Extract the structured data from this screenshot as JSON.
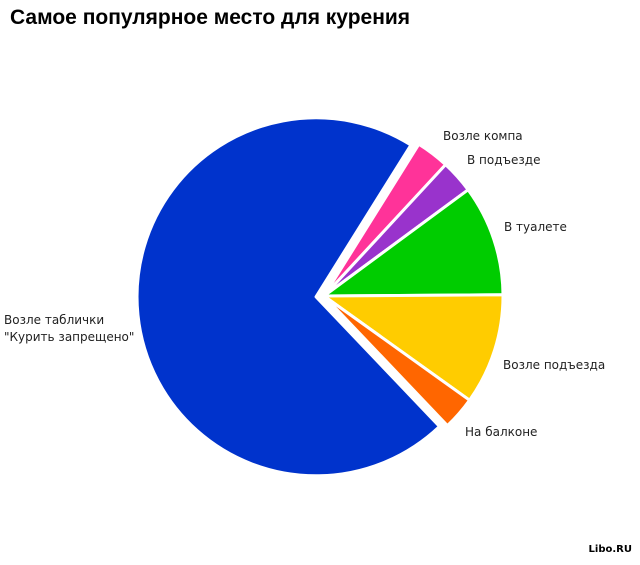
{
  "chart_data": {
    "type": "pie",
    "title": "Самое популярное место для курения",
    "slices": [
      {
        "label": "Возле компа",
        "value": 3,
        "color": "#ff3399"
      },
      {
        "label": "В подъезде",
        "value": 3,
        "color": "#9933cc"
      },
      {
        "label": "В туалете",
        "value": 10,
        "color": "#00cc00"
      },
      {
        "label": "Возле подъезда",
        "value": 10,
        "color": "#ffcc00"
      },
      {
        "label": "На балконе",
        "value": 3,
        "color": "#ff6600"
      },
      {
        "label": "Возле таблички\n\"Курить запрещено\"",
        "value": 71,
        "color": "#0033cc"
      }
    ],
    "start_angle_deg": 32,
    "exploded_slice": "Возле таблички\n\"Курить запрещено\""
  },
  "watermark": "Libo.RU"
}
